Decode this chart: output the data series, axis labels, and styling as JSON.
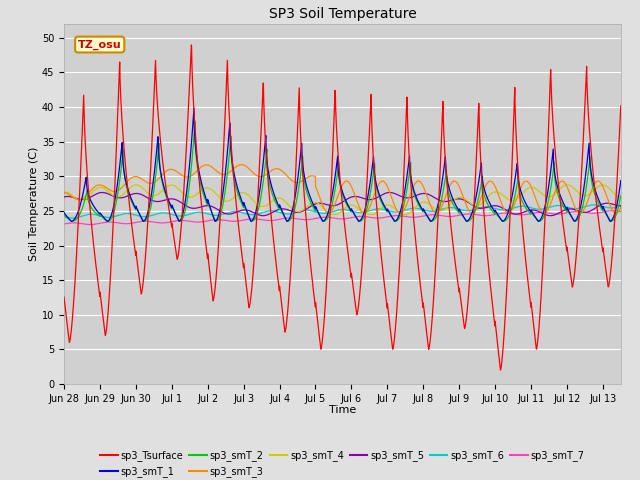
{
  "title": "SP3 Soil Temperature",
  "ylabel": "Soil Temperature (C)",
  "xlabel": "Time",
  "ylim": [
    0,
    52
  ],
  "yticks": [
    0,
    5,
    10,
    15,
    20,
    25,
    30,
    35,
    40,
    45,
    50
  ],
  "fig_bg_color": "#e0e0e0",
  "plot_bg_color": "#d0d0d0",
  "series_colors": {
    "sp3_Tsurface": "#ff0000",
    "sp3_smT_1": "#0000dd",
    "sp3_smT_2": "#00cc00",
    "sp3_smT_3": "#ff8800",
    "sp3_smT_4": "#cccc00",
    "sp3_smT_5": "#8800aa",
    "sp3_smT_6": "#00cccc",
    "sp3_smT_7": "#ff44bb"
  },
  "tz_label": "TZ_osu",
  "tz_bg": "#ffffcc",
  "tz_border": "#cc8800",
  "tz_text_color": "#cc0000",
  "grid_color": "#ffffff",
  "tick_labels": [
    "Jun 28",
    "Jun 29",
    "Jun 30",
    "Jul 1",
    "Jul 2",
    "Jul 3",
    "Jul 4",
    "Jul 5",
    "Jul 6",
    "Jul 7",
    "Jul 8",
    "Jul 9",
    "Jul 10",
    "Jul 11",
    "Jul 12",
    "Jul 13"
  ]
}
